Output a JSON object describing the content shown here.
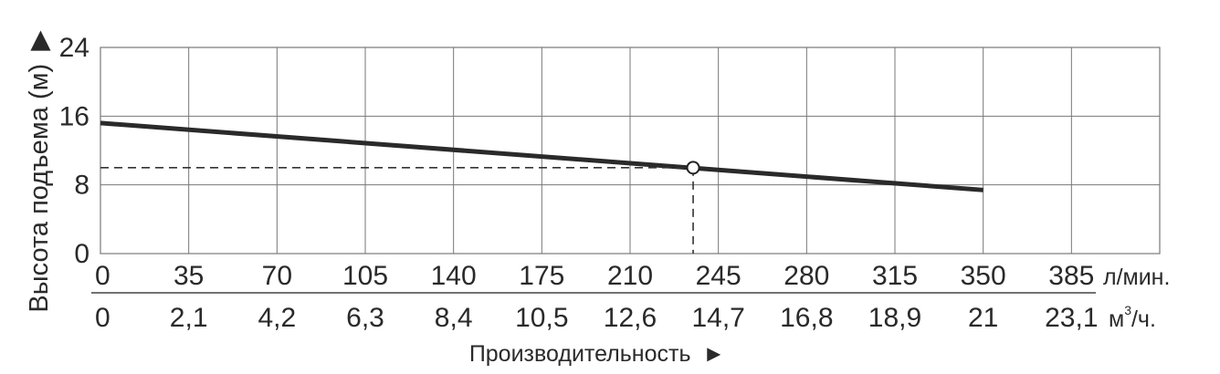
{
  "chart_data": {
    "type": "line",
    "ylabel": "Высота подъема (м)",
    "ylabel_arrow": "▶",
    "xlabel": "Производительность",
    "xlabel_arrow": "►",
    "y_ticks": [
      "0",
      "8",
      "16",
      "24"
    ],
    "ylim": [
      0,
      24
    ],
    "grid": true,
    "x_axes": [
      {
        "unit": "л/мин.",
        "ticks": [
          "0",
          "35",
          "70",
          "105",
          "140",
          "175",
          "210",
          "245",
          "280",
          "315",
          "350",
          "385"
        ],
        "xlim": [
          0,
          420
        ]
      },
      {
        "unit_base": "м",
        "unit_sup": "3",
        "unit_tail": "/ч.",
        "ticks": [
          "0",
          "2,1",
          "4,2",
          "6,3",
          "8,4",
          "10,5",
          "12,6",
          "14,7",
          "16,8",
          "18,9",
          "21",
          "23,1"
        ],
        "xlim": [
          0,
          25.2
        ]
      }
    ],
    "series": [
      {
        "x": [
          0,
          350
        ],
        "y": [
          15.2,
          7.4
        ]
      }
    ],
    "operating_point": {
      "x": 235,
      "y": 10
    },
    "colors": {
      "line": "#2a2a2a",
      "grid": "#777777",
      "text": "#2a2a2a"
    }
  }
}
